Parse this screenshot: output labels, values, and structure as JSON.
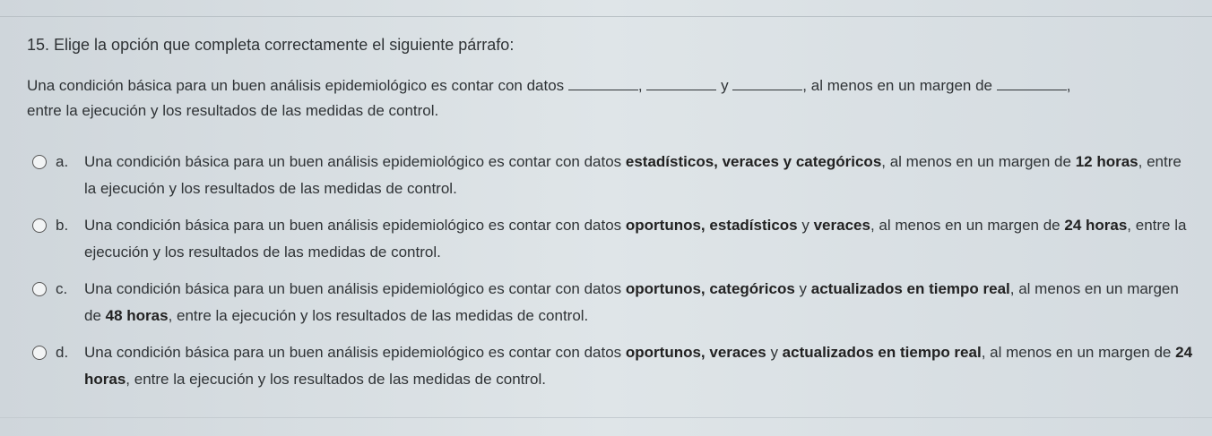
{
  "question": {
    "title": "15. Elige la opción que completa correctamente el siguiente párrafo:",
    "text_parts": [
      "Una condición básica para un buen análisis epidemiológico es contar con datos ",
      ", ",
      " y ",
      ", al menos en un margen de ",
      ",",
      " entre la ejecución y los resultados de las medidas de control."
    ]
  },
  "options": [
    {
      "letter": "a.",
      "segments": [
        {
          "t": "Una condición básica para un buen análisis epidemiológico es contar con datos ",
          "b": false
        },
        {
          "t": "estadísticos, veraces y categóricos",
          "b": true
        },
        {
          "t": ", al menos en un margen de ",
          "b": false
        },
        {
          "t": "12 horas",
          "b": true
        },
        {
          "t": ", entre la ejecución y los resultados de las medidas de control.",
          "b": false
        }
      ]
    },
    {
      "letter": "b.",
      "segments": [
        {
          "t": "Una condición básica para un buen análisis epidemiológico es contar con datos ",
          "b": false
        },
        {
          "t": "oportunos, estadísticos",
          "b": true
        },
        {
          "t": " y ",
          "b": false
        },
        {
          "t": "veraces",
          "b": true
        },
        {
          "t": ", al menos en un margen de ",
          "b": false
        },
        {
          "t": "24 horas",
          "b": true
        },
        {
          "t": ", entre la ejecución y los resultados de las medidas de control.",
          "b": false
        }
      ]
    },
    {
      "letter": "c.",
      "segments": [
        {
          "t": "Una condición básica para un buen análisis epidemiológico es contar con datos ",
          "b": false
        },
        {
          "t": "oportunos, categóricos",
          "b": true
        },
        {
          "t": " y ",
          "b": false
        },
        {
          "t": "actualizados en tiempo real",
          "b": true
        },
        {
          "t": ", al menos en un margen de ",
          "b": false
        },
        {
          "t": "48 horas",
          "b": true
        },
        {
          "t": ", entre la ejecución y los resultados de las medidas de control.",
          "b": false
        }
      ]
    },
    {
      "letter": "d.",
      "segments": [
        {
          "t": "Una condición básica para un buen análisis epidemiológico es contar con datos ",
          "b": false
        },
        {
          "t": "oportunos, veraces",
          "b": true
        },
        {
          "t": " y ",
          "b": false
        },
        {
          "t": "actualizados en tiempo real",
          "b": true
        },
        {
          "t": ", al menos en un margen de ",
          "b": false
        },
        {
          "t": "24 horas",
          "b": true
        },
        {
          "t": ", entre la ejecución y los resultados de las medidas de control.",
          "b": false
        }
      ]
    }
  ]
}
